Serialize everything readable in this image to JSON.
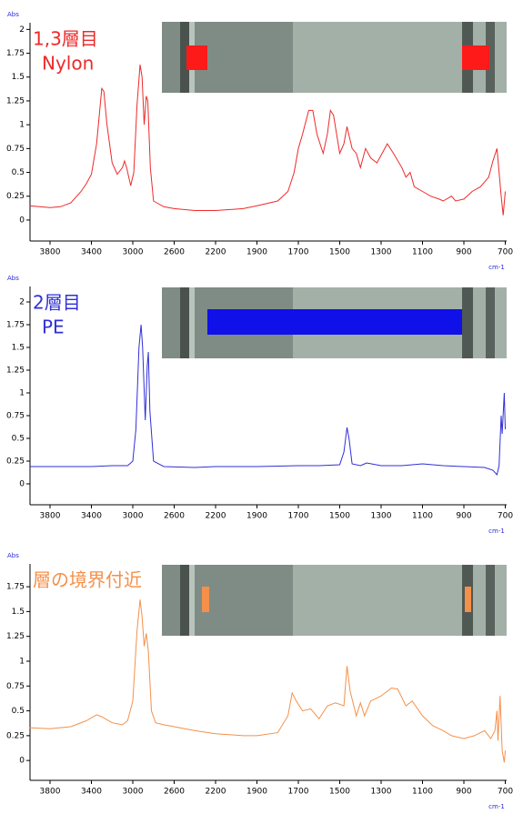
{
  "chart_data": [
    {
      "type": "line",
      "annotations": [
        "1,3層目",
        "Nylon"
      ],
      "y_label": "Abs",
      "x_label": "cm-1",
      "color": "#ee2a2a",
      "x": [
        4000,
        3900,
        3800,
        3700,
        3600,
        3500,
        3450,
        3400,
        3350,
        3300,
        3280,
        3250,
        3200,
        3150,
        3100,
        3080,
        3060,
        3020,
        2990,
        2960,
        2930,
        2910,
        2890,
        2870,
        2855,
        2830,
        2800,
        2700,
        2600,
        2400,
        2200,
        2000,
        1900,
        1800,
        1750,
        1720,
        1700,
        1680,
        1650,
        1630,
        1610,
        1580,
        1560,
        1545,
        1530,
        1500,
        1480,
        1465,
        1440,
        1420,
        1400,
        1375,
        1350,
        1320,
        1270,
        1240,
        1200,
        1180,
        1160,
        1140,
        1100,
        1060,
        1020,
        1000,
        960,
        940,
        900,
        860,
        820,
        780,
        760,
        740,
        730,
        720,
        710,
        700
      ],
      "values": [
        0.15,
        0.14,
        0.13,
        0.14,
        0.18,
        0.3,
        0.38,
        0.48,
        0.8,
        1.38,
        1.35,
        1.0,
        0.6,
        0.48,
        0.55,
        0.62,
        0.55,
        0.36,
        0.5,
        1.2,
        1.63,
        1.5,
        1.0,
        1.3,
        1.25,
        0.55,
        0.2,
        0.14,
        0.12,
        0.1,
        0.1,
        0.12,
        0.15,
        0.2,
        0.3,
        0.5,
        0.75,
        0.9,
        1.15,
        1.15,
        0.9,
        0.7,
        0.9,
        1.15,
        1.1,
        0.7,
        0.8,
        0.98,
        0.75,
        0.7,
        0.55,
        0.75,
        0.65,
        0.6,
        0.8,
        0.7,
        0.55,
        0.45,
        0.5,
        0.35,
        0.3,
        0.25,
        0.22,
        0.2,
        0.25,
        0.2,
        0.22,
        0.3,
        0.35,
        0.45,
        0.62,
        0.75,
        0.5,
        0.25,
        0.05,
        0.3
      ],
      "xlim": [
        4000,
        700
      ],
      "xticks": [
        3800,
        3400,
        3000,
        2600,
        2200,
        1900,
        1700,
        1500,
        1300,
        1100,
        900,
        700
      ],
      "ylim": [
        -0.22,
        2.07
      ],
      "yticks": [
        0,
        0.25,
        0.5,
        0.75,
        1,
        1.25,
        1.5,
        1.75,
        2
      ]
    },
    {
      "type": "line",
      "annotations": [
        "2層目",
        "PE"
      ],
      "y_label": "Abs",
      "x_label": "cm-1",
      "color": "#2f2fd8",
      "x": [
        4000,
        3800,
        3400,
        3200,
        3050,
        3000,
        2970,
        2940,
        2920,
        2905,
        2880,
        2860,
        2850,
        2835,
        2800,
        2700,
        2400,
        2200,
        2000,
        1900,
        1700,
        1600,
        1500,
        1480,
        1465,
        1455,
        1440,
        1400,
        1370,
        1300,
        1200,
        1100,
        1000,
        900,
        800,
        760,
        740,
        730,
        720,
        715,
        705,
        700
      ],
      "values": [
        0.19,
        0.19,
        0.19,
        0.2,
        0.2,
        0.25,
        0.6,
        1.5,
        1.75,
        1.5,
        0.7,
        1.3,
        1.45,
        0.8,
        0.25,
        0.19,
        0.18,
        0.19,
        0.19,
        0.19,
        0.2,
        0.2,
        0.21,
        0.35,
        0.62,
        0.5,
        0.22,
        0.2,
        0.23,
        0.2,
        0.2,
        0.22,
        0.2,
        0.19,
        0.18,
        0.15,
        0.1,
        0.2,
        0.75,
        0.55,
        1.0,
        0.6
      ],
      "xlim": [
        4000,
        700
      ],
      "xticks": [
        3800,
        3400,
        3000,
        2600,
        2200,
        1900,
        1700,
        1500,
        1300,
        1100,
        900,
        700
      ],
      "ylim": [
        -0.23,
        2.17
      ],
      "yticks": [
        0,
        0.25,
        0.5,
        0.75,
        1,
        1.25,
        1.5,
        1.75,
        2
      ]
    },
    {
      "type": "line",
      "annotations": [
        "層の境界付近"
      ],
      "y_label": "Abs",
      "x_label": "cm-1",
      "color": "#f5904a",
      "x": [
        4000,
        3800,
        3600,
        3450,
        3350,
        3300,
        3200,
        3100,
        3050,
        3000,
        2960,
        2930,
        2910,
        2890,
        2870,
        2850,
        2820,
        2780,
        2700,
        2600,
        2400,
        2200,
        2000,
        1900,
        1800,
        1750,
        1730,
        1710,
        1680,
        1640,
        1600,
        1560,
        1520,
        1480,
        1465,
        1450,
        1420,
        1400,
        1380,
        1350,
        1300,
        1250,
        1220,
        1180,
        1150,
        1100,
        1050,
        1000,
        960,
        900,
        850,
        800,
        770,
        750,
        740,
        735,
        725,
        715,
        705,
        700
      ],
      "values": [
        0.33,
        0.32,
        0.34,
        0.4,
        0.46,
        0.44,
        0.38,
        0.36,
        0.4,
        0.6,
        1.3,
        1.62,
        1.45,
        1.15,
        1.28,
        1.1,
        0.5,
        0.38,
        0.36,
        0.34,
        0.3,
        0.27,
        0.25,
        0.25,
        0.28,
        0.45,
        0.68,
        0.6,
        0.5,
        0.52,
        0.42,
        0.55,
        0.58,
        0.55,
        0.95,
        0.7,
        0.45,
        0.58,
        0.45,
        0.6,
        0.65,
        0.73,
        0.72,
        0.55,
        0.6,
        0.45,
        0.35,
        0.3,
        0.25,
        0.22,
        0.25,
        0.3,
        0.22,
        0.3,
        0.5,
        0.2,
        0.65,
        0.1,
        -0.02,
        0.1
      ],
      "xlim": [
        4000,
        700
      ],
      "xticks": [
        3800,
        3400,
        3000,
        2600,
        2200,
        1900,
        1700,
        1500,
        1300,
        1100,
        900,
        700
      ],
      "ylim": [
        -0.2,
        1.98
      ],
      "yticks": [
        0,
        0.25,
        0.5,
        0.75,
        1,
        1.25,
        1.5,
        1.75
      ]
    }
  ]
}
